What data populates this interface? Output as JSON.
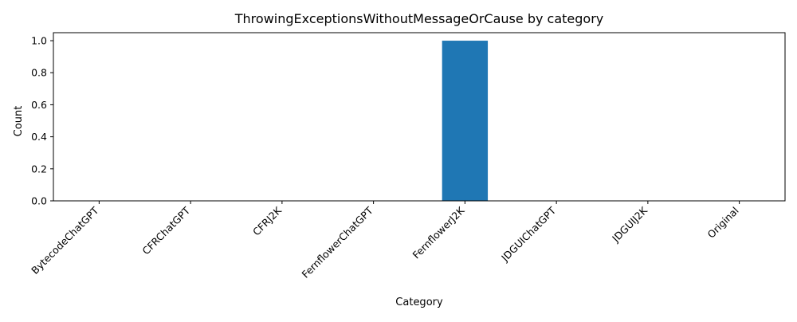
{
  "chart_data": {
    "type": "bar",
    "title": "ThrowingExceptionsWithoutMessageOrCause by category",
    "xlabel": "Category",
    "ylabel": "Count",
    "categories": [
      "BytecodeChatGPT",
      "CFRChatGPT",
      "CFRJ2K",
      "FernflowerChatGPT",
      "FernflowerJ2K",
      "JDGUIChatGPT",
      "JDGUIJ2K",
      "Original"
    ],
    "values": [
      0,
      0,
      0,
      0,
      1,
      0,
      0,
      0
    ],
    "ylim": [
      0,
      1.05
    ],
    "yticks": [
      "0.0",
      "0.2",
      "0.4",
      "0.6",
      "0.8",
      "1.0"
    ],
    "bar_color": "#1f77b4",
    "grid": false,
    "legend": "none"
  }
}
